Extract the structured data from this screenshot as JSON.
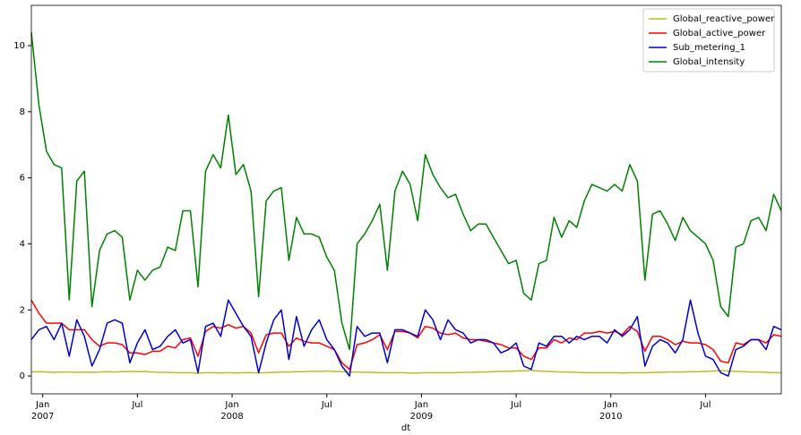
{
  "chart_data": {
    "type": "line",
    "x_label": "dt",
    "x": [
      2006.94,
      2006.98,
      2007.02,
      2007.06,
      2007.1,
      2007.14,
      2007.18,
      2007.22,
      2007.26,
      2007.3,
      2007.34,
      2007.38,
      2007.42,
      2007.46,
      2007.5,
      2007.54,
      2007.58,
      2007.62,
      2007.66,
      2007.7,
      2007.74,
      2007.78,
      2007.82,
      2007.86,
      2007.9,
      2007.94,
      2007.98,
      2008.02,
      2008.06,
      2008.1,
      2008.14,
      2008.18,
      2008.22,
      2008.26,
      2008.3,
      2008.34,
      2008.38,
      2008.42,
      2008.46,
      2008.5,
      2008.54,
      2008.58,
      2008.62,
      2008.66,
      2008.7,
      2008.74,
      2008.78,
      2008.82,
      2008.86,
      2008.9,
      2008.94,
      2008.98,
      2009.02,
      2009.06,
      2009.1,
      2009.14,
      2009.18,
      2009.22,
      2009.26,
      2009.3,
      2009.34,
      2009.38,
      2009.42,
      2009.46,
      2009.5,
      2009.54,
      2009.58,
      2009.62,
      2009.66,
      2009.7,
      2009.74,
      2009.78,
      2009.82,
      2009.86,
      2009.9,
      2009.94,
      2009.98,
      2010.02,
      2010.06,
      2010.1,
      2010.14,
      2010.18,
      2010.22,
      2010.26,
      2010.3,
      2010.34,
      2010.38,
      2010.42,
      2010.46,
      2010.5,
      2010.54,
      2010.58,
      2010.62,
      2010.66,
      2010.7,
      2010.74,
      2010.78,
      2010.82,
      2010.86,
      2010.9
    ],
    "series": [
      {
        "name": "Global_reactive_power",
        "color": "#bcbd22",
        "values": [
          0.12,
          0.13,
          0.12,
          0.11,
          0.12,
          0.12,
          0.11,
          0.12,
          0.11,
          0.12,
          0.13,
          0.12,
          0.13,
          0.14,
          0.13,
          0.14,
          0.12,
          0.11,
          0.11,
          0.1,
          0.1,
          0.1,
          0.08,
          0.1,
          0.1,
          0.09,
          0.1,
          0.09,
          0.1,
          0.1,
          0.09,
          0.1,
          0.11,
          0.12,
          0.12,
          0.13,
          0.13,
          0.14,
          0.14,
          0.15,
          0.14,
          0.13,
          0.12,
          0.12,
          0.11,
          0.11,
          0.1,
          0.1,
          0.1,
          0.1,
          0.09,
          0.09,
          0.1,
          0.1,
          0.1,
          0.1,
          0.1,
          0.11,
          0.11,
          0.12,
          0.12,
          0.13,
          0.14,
          0.14,
          0.15,
          0.16,
          0.17,
          0.15,
          0.14,
          0.13,
          0.12,
          0.12,
          0.11,
          0.1,
          0.1,
          0.1,
          0.1,
          0.1,
          0.09,
          0.1,
          0.1,
          0.1,
          0.11,
          0.11,
          0.12,
          0.12,
          0.12,
          0.13,
          0.13,
          0.14,
          0.15,
          0.16,
          0.15,
          0.14,
          0.13,
          0.12,
          0.12,
          0.11,
          0.1,
          0.1
        ]
      },
      {
        "name": "Global_active_power",
        "color": "#ff0000",
        "values": [
          2.3,
          1.9,
          1.6,
          1.6,
          1.6,
          1.4,
          1.4,
          1.4,
          1.1,
          0.9,
          1.0,
          1.0,
          0.95,
          0.7,
          0.7,
          0.65,
          0.75,
          0.75,
          0.9,
          0.85,
          1.1,
          1.15,
          0.6,
          1.35,
          1.5,
          1.45,
          1.55,
          1.45,
          1.5,
          1.3,
          0.7,
          1.25,
          1.3,
          1.3,
          0.9,
          1.15,
          1.05,
          1.0,
          1.0,
          0.9,
          0.8,
          0.4,
          0.2,
          0.95,
          1.0,
          1.1,
          1.25,
          0.8,
          1.35,
          1.35,
          1.3,
          1.15,
          1.5,
          1.45,
          1.3,
          1.25,
          1.3,
          1.15,
          1.1,
          1.1,
          1.05,
          1.0,
          0.95,
          0.85,
          0.85,
          0.6,
          0.5,
          0.85,
          0.85,
          1.1,
          1.0,
          1.15,
          1.1,
          1.3,
          1.3,
          1.35,
          1.3,
          1.35,
          1.25,
          1.5,
          1.35,
          0.75,
          1.2,
          1.2,
          1.1,
          0.95,
          1.05,
          1.0,
          1.0,
          0.95,
          0.8,
          0.45,
          0.4,
          1.0,
          0.95,
          1.1,
          1.1,
          1.0,
          1.25,
          1.2
        ]
      },
      {
        "name": "Sub_metering_1",
        "color": "#0000cd",
        "values": [
          1.1,
          1.4,
          1.5,
          1.1,
          1.6,
          0.6,
          1.7,
          1.2,
          0.3,
          0.8,
          1.6,
          1.7,
          1.6,
          0.4,
          1.0,
          1.4,
          0.8,
          0.9,
          1.2,
          1.4,
          1.0,
          1.1,
          0.1,
          1.5,
          1.6,
          1.2,
          2.3,
          1.9,
          1.5,
          1.2,
          0.1,
          1.0,
          1.7,
          2.0,
          0.5,
          1.8,
          0.9,
          1.4,
          1.7,
          1.1,
          0.8,
          0.3,
          0.0,
          1.5,
          1.2,
          1.3,
          1.3,
          0.4,
          1.4,
          1.4,
          1.3,
          1.2,
          2.0,
          1.7,
          1.1,
          1.7,
          1.4,
          1.3,
          1.0,
          1.1,
          1.1,
          1.0,
          0.7,
          0.8,
          1.0,
          0.3,
          0.2,
          1.0,
          0.9,
          1.2,
          1.2,
          1.0,
          1.2,
          1.1,
          1.2,
          1.2,
          1.0,
          1.4,
          1.2,
          1.4,
          1.8,
          0.3,
          0.9,
          1.1,
          1.0,
          0.7,
          1.1,
          2.3,
          1.3,
          0.6,
          0.5,
          0.1,
          0.0,
          0.8,
          0.9,
          1.1,
          1.1,
          0.8,
          1.5,
          1.4
        ]
      },
      {
        "name": "Global_intensity",
        "color": "#008000",
        "values": [
          10.4,
          8.2,
          6.8,
          6.4,
          6.3,
          2.3,
          5.9,
          6.2,
          2.1,
          3.8,
          4.3,
          4.4,
          4.2,
          2.3,
          3.2,
          2.9,
          3.2,
          3.3,
          3.9,
          3.8,
          5.0,
          5.0,
          2.7,
          6.2,
          6.7,
          6.3,
          7.9,
          6.1,
          6.4,
          5.6,
          2.4,
          5.3,
          5.6,
          5.7,
          3.5,
          4.8,
          4.3,
          4.3,
          4.2,
          3.6,
          3.2,
          1.6,
          0.8,
          4.0,
          4.3,
          4.7,
          5.2,
          3.2,
          5.6,
          6.2,
          5.8,
          4.7,
          6.7,
          6.1,
          5.7,
          5.4,
          5.5,
          4.9,
          4.4,
          4.6,
          4.6,
          4.2,
          3.8,
          3.4,
          3.5,
          2.5,
          2.3,
          3.4,
          3.5,
          4.8,
          4.2,
          4.7,
          4.5,
          5.3,
          5.8,
          5.7,
          5.6,
          5.8,
          5.6,
          6.4,
          5.9,
          2.9,
          4.9,
          5.0,
          4.6,
          4.1,
          4.8,
          4.4,
          4.2,
          4.0,
          3.5,
          2.1,
          1.8,
          3.9,
          4.0,
          4.7,
          4.8,
          4.4,
          5.5,
          5.0
        ]
      }
    ],
    "xlim": [
      2006.94,
      2010.9
    ],
    "xticks": [
      {
        "value": 2007,
        "label": "Jan"
      },
      {
        "value": 2007.5,
        "label": "Jul"
      },
      {
        "value": 2008,
        "label": "Jan"
      },
      {
        "value": 2008.5,
        "label": "Jul"
      },
      {
        "value": 2009,
        "label": "Jan"
      },
      {
        "value": 2009.5,
        "label": "Jul"
      },
      {
        "value": 2010,
        "label": "Jan"
      },
      {
        "value": 2010.5,
        "label": "Jul"
      }
    ],
    "x_year_labels": [
      2007,
      2008,
      2009,
      2010
    ],
    "ylim": [
      -0.54,
      11.22
    ],
    "yticks": [
      0,
      2,
      4,
      6,
      8,
      10
    ],
    "grid": false,
    "legend": "upper right"
  }
}
